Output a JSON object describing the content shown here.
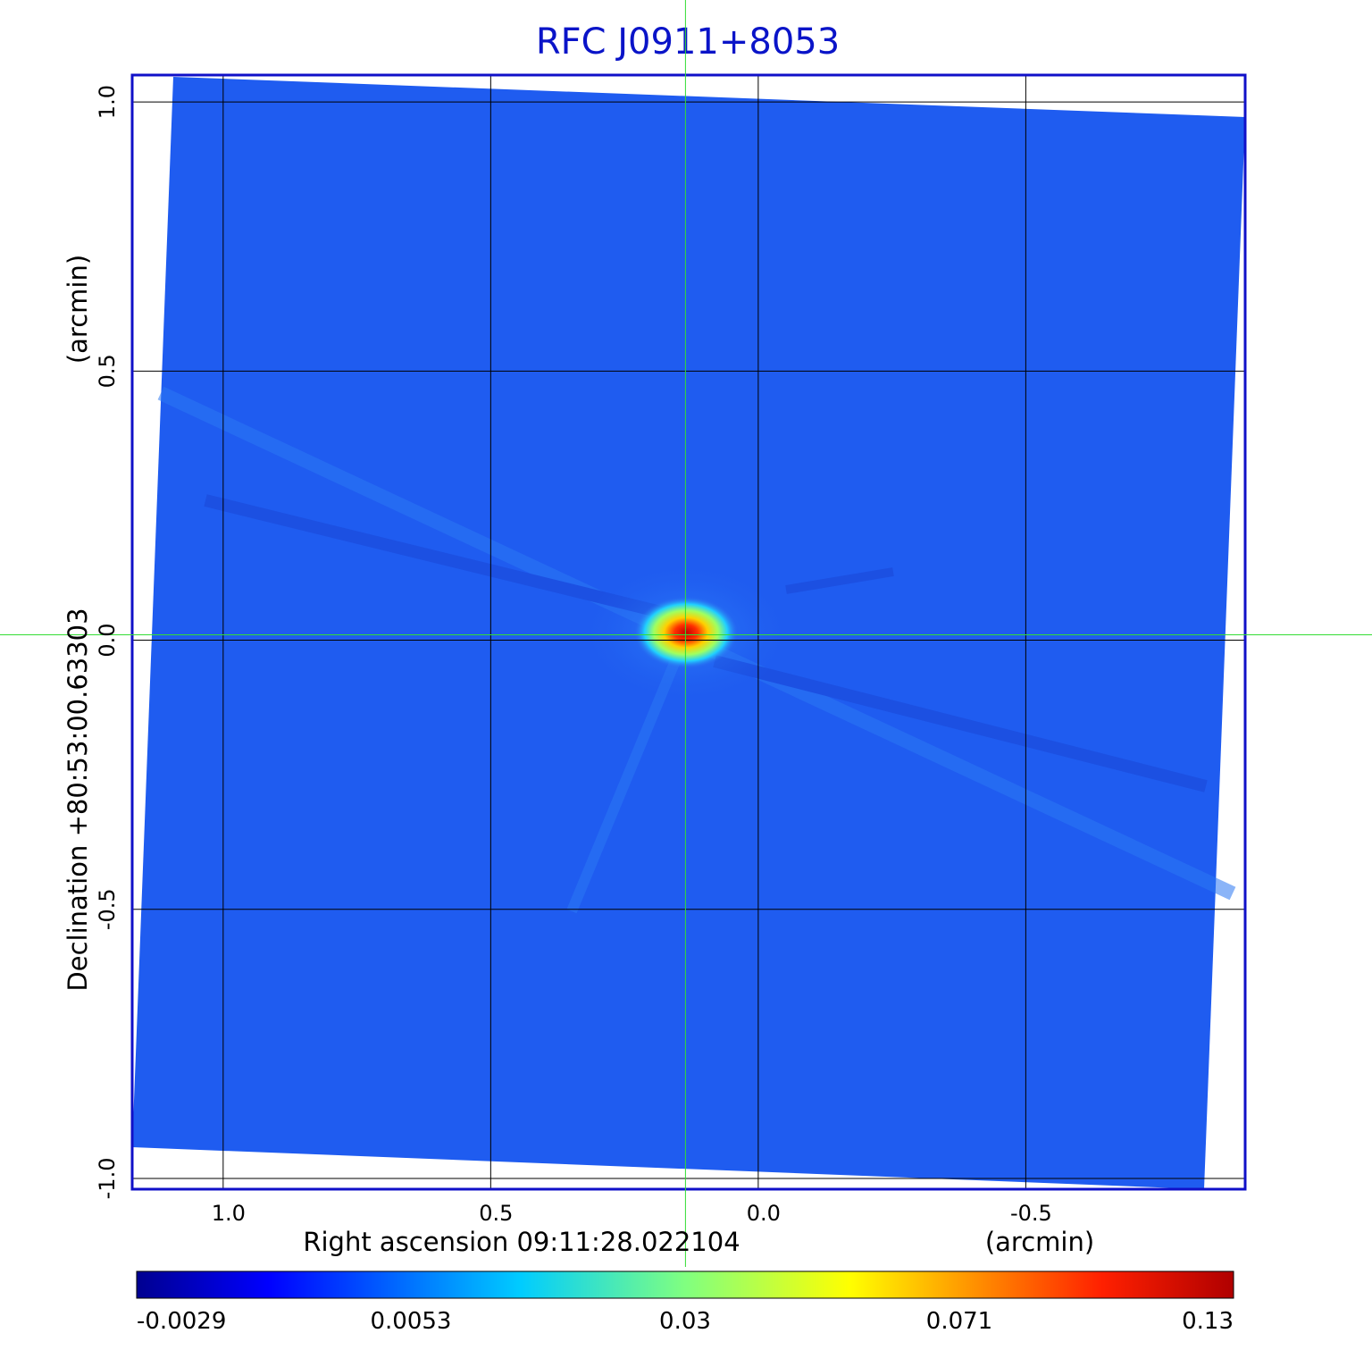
{
  "chart_data": {
    "type": "heatmap",
    "title": "RFC J0911+8053",
    "xlabel": "Right ascension  09:11:28.022104",
    "xunit": "(arcmin)",
    "ylabel": "Declination  +80:53:00.63303",
    "yunit": "(arcmin)",
    "x_ticks": [
      "1.0",
      "0.5",
      "0.0",
      "-0.5"
    ],
    "x_tick_values": [
      1.0,
      0.5,
      0.0,
      -0.5
    ],
    "y_ticks": [
      "1.0",
      "0.5",
      "0.0",
      "-0.5",
      "-1.0"
    ],
    "y_tick_values": [
      1.0,
      0.5,
      0.0,
      -0.5,
      -1.0
    ],
    "xlim": [
      1.17,
      -0.91
    ],
    "ylim": [
      -1.02,
      1.05
    ],
    "grid": true,
    "crosshair": {
      "x": 0.136,
      "y": 0.01
    },
    "colorbar": {
      "tick_labels": [
        "-0.0029",
        "0.0053",
        "0.03",
        "0.071",
        "0.13"
      ],
      "range": [
        -0.0029,
        0.13
      ],
      "colormap": "jet"
    },
    "peak": {
      "x": 0.136,
      "y": 0.01,
      "value": 0.13
    },
    "colors": {
      "background_map": "#1f5cf0",
      "frame": "#1010c8",
      "grid": "#000000",
      "crosshair": "#33dd33"
    }
  }
}
